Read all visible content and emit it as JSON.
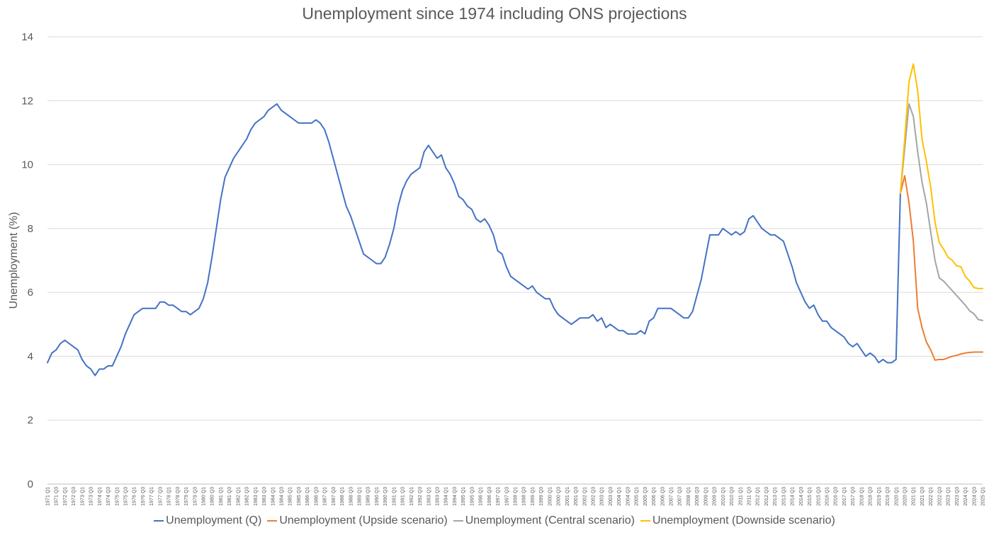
{
  "chart_data": {
    "type": "line",
    "title": "Unemployment since 1974 including ONS projections",
    "ylabel": "Unemployment (%)",
    "xlabel": "",
    "ylim": [
      0,
      14
    ],
    "yticks": [
      0,
      2,
      4,
      6,
      8,
      10,
      12,
      14
    ],
    "grid": "horizontal",
    "legend_position": "bottom",
    "x_tick_labels": [
      "1971 Q1",
      "1971 Q3",
      "1972 Q1",
      "1972 Q3",
      "1973 Q1",
      "1973 Q3",
      "1974 Q1",
      "1974 Q3",
      "1975 Q1",
      "1975 Q3",
      "1976 Q1",
      "1976 Q3",
      "1977 Q1",
      "1977 Q3",
      "1978 Q1",
      "1978 Q3",
      "1979 Q1",
      "1979 Q3",
      "1980 Q1",
      "1980 Q3",
      "1981 Q1",
      "1981 Q3",
      "1982 Q1",
      "1982 Q3",
      "1983 Q1",
      "1983 Q3",
      "1984 Q1",
      "1984 Q3",
      "1985 Q1",
      "1985 Q3",
      "1986 Q1",
      "1986 Q3",
      "1987 Q1",
      "1987 Q3",
      "1988 Q1",
      "1988 Q3",
      "1989 Q1",
      "1989 Q3",
      "1990 Q1",
      "1990 Q3",
      "1991 Q1",
      "1991 Q3",
      "1992 Q1",
      "1992 Q3",
      "1993 Q1",
      "1993 Q3",
      "1994 Q1",
      "1994 Q3",
      "1995 Q1",
      "1995 Q3",
      "1996 Q1",
      "1996 Q3",
      "1997 Q1",
      "1997 Q3",
      "1998 Q1",
      "1998 Q3",
      "1999 Q1",
      "1999 Q3",
      "2000 Q1",
      "2000 Q3",
      "2001 Q1",
      "2001 Q3",
      "2002 Q1",
      "2002 Q3",
      "2003 Q1",
      "2003 Q3",
      "2004 Q1",
      "2004 Q3",
      "2005 Q1",
      "2005 Q3",
      "2006 Q1",
      "2006 Q3",
      "2007 Q1",
      "2007 Q3",
      "2008 Q1",
      "2008 Q3",
      "2009 Q1",
      "2009 Q3",
      "2010 Q1",
      "2010 Q3",
      "2011 Q1",
      "2011 Q3",
      "2012 Q1",
      "2012 Q3",
      "2013 Q1",
      "2013 Q3",
      "2014 Q1",
      "2014 Q3",
      "2015 Q1",
      "2015 Q3",
      "2016 Q1",
      "2016 Q3",
      "2017 Q1",
      "2017 Q3",
      "2018 Q1",
      "2018 Q3",
      "2019 Q1",
      "2019 Q3",
      "2020 Q1",
      "2020 Q3",
      "2021 Q1",
      "2021 Q3",
      "2022 Q1",
      "2022 Q3",
      "2023 Q1",
      "2023 Q3",
      "2024 Q1",
      "2024 Q3",
      "2025 Q1"
    ],
    "series": [
      {
        "name": "Unemployment (Q)",
        "color": "#4472C4",
        "start": "1971 Q1",
        "values": [
          3.8,
          4.1,
          4.2,
          4.4,
          4.5,
          4.4,
          4.3,
          4.2,
          3.9,
          3.7,
          3.6,
          3.4,
          3.6,
          3.6,
          3.7,
          3.7,
          4.0,
          4.3,
          4.7,
          5.0,
          5.3,
          5.4,
          5.5,
          5.5,
          5.5,
          5.5,
          5.7,
          5.7,
          5.6,
          5.6,
          5.5,
          5.4,
          5.4,
          5.3,
          5.4,
          5.5,
          5.8,
          6.3,
          7.1,
          8.0,
          8.9,
          9.6,
          9.9,
          10.2,
          10.4,
          10.6,
          10.8,
          11.1,
          11.3,
          11.4,
          11.5,
          11.7,
          11.8,
          11.9,
          11.7,
          11.6,
          11.5,
          11.4,
          11.3,
          11.3,
          11.3,
          11.3,
          11.4,
          11.3,
          11.1,
          10.7,
          10.2,
          9.7,
          9.2,
          8.7,
          8.4,
          8.0,
          7.6,
          7.2,
          7.1,
          7.0,
          6.9,
          6.9,
          7.1,
          7.5,
          8.0,
          8.7,
          9.2,
          9.5,
          9.7,
          9.8,
          9.9,
          10.4,
          10.6,
          10.4,
          10.2,
          10.3,
          9.9,
          9.7,
          9.4,
          9.0,
          8.9,
          8.7,
          8.6,
          8.3,
          8.2,
          8.3,
          8.1,
          7.8,
          7.3,
          7.2,
          6.8,
          6.5,
          6.4,
          6.3,
          6.2,
          6.1,
          6.2,
          6.0,
          5.9,
          5.8,
          5.8,
          5.5,
          5.3,
          5.2,
          5.1,
          5.0,
          5.1,
          5.2,
          5.2,
          5.2,
          5.3,
          5.1,
          5.2,
          4.9,
          5.0,
          4.9,
          4.8,
          4.8,
          4.7,
          4.7,
          4.7,
          4.8,
          4.7,
          5.1,
          5.2,
          5.5,
          5.5,
          5.5,
          5.5,
          5.4,
          5.3,
          5.2,
          5.2,
          5.4,
          5.9,
          6.4,
          7.1,
          7.8,
          7.8,
          7.8,
          8.0,
          7.9,
          7.8,
          7.9,
          7.8,
          7.9,
          8.3,
          8.4,
          8.2,
          8.0,
          7.9,
          7.8,
          7.8,
          7.7,
          7.6,
          7.2,
          6.8,
          6.3,
          6.0,
          5.7,
          5.5,
          5.6,
          5.3,
          5.1,
          5.1,
          4.9,
          4.8,
          4.7,
          4.6,
          4.4,
          4.3,
          4.4,
          4.2,
          4.0,
          4.1,
          4.0,
          3.8,
          3.9,
          3.8,
          3.8,
          3.9,
          9.1
        ]
      },
      {
        "name": "Unemployment (Upside scenario)",
        "color": "#ED7D31",
        "start": "2020 Q2",
        "values": [
          9.1,
          9.65,
          8.8,
          7.6,
          5.5,
          4.9,
          4.45,
          4.2,
          3.88,
          3.9,
          3.9,
          3.95,
          4.0,
          4.03,
          4.07,
          4.1,
          4.12,
          4.13,
          4.13,
          4.13
        ]
      },
      {
        "name": "Unemployment (Central scenario)",
        "color": "#A5A5A5",
        "start": "2020 Q2",
        "values": [
          9.1,
          10.5,
          11.9,
          11.5,
          10.4,
          9.45,
          8.8,
          7.9,
          7.0,
          6.45,
          6.35,
          6.2,
          6.05,
          5.9,
          5.75,
          5.6,
          5.42,
          5.33,
          5.15,
          5.12
        ]
      },
      {
        "name": "Unemployment (Downside scenario)",
        "color": "#FFC000",
        "start": "2020 Q2",
        "values": [
          9.1,
          10.8,
          12.6,
          13.15,
          12.3,
          10.8,
          10.1,
          9.3,
          8.2,
          7.55,
          7.35,
          7.1,
          7.0,
          6.83,
          6.8,
          6.5,
          6.35,
          6.15,
          6.12,
          6.12
        ]
      }
    ]
  }
}
